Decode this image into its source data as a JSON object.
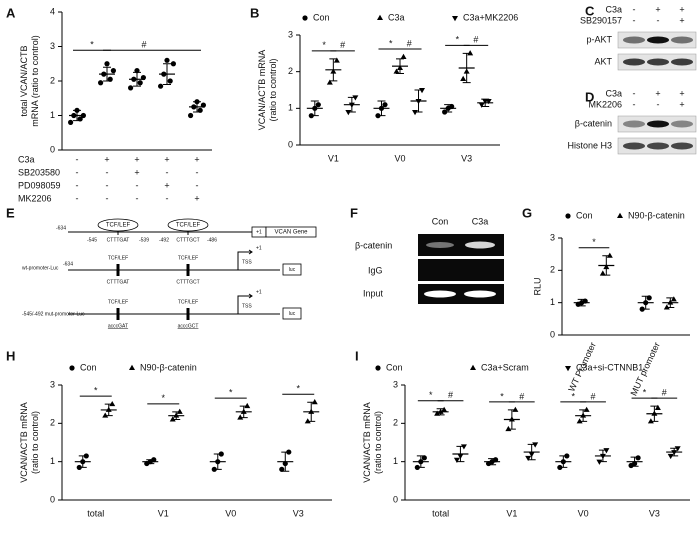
{
  "chart_data": [
    {
      "panel": "A",
      "type": "strip",
      "ylabel": [
        "total VCAN/ACTB",
        "mRNA (ratio to control)"
      ],
      "categories": [
        null,
        null,
        null,
        null,
        null
      ],
      "ylim": [
        0,
        4
      ],
      "yticks": [
        0,
        1,
        2,
        3,
        4
      ],
      "series": [
        {
          "color": "#000000",
          "marker": "circle",
          "means": [
            1.0,
            2.2,
            2.05,
            2.2,
            1.25
          ],
          "sds": [
            0.15,
            0.2,
            0.2,
            0.3,
            0.15
          ],
          "points": [
            [
              0.8,
              0.9,
              1.0,
              1.0,
              1.15
            ],
            [
              1.95,
              2.05,
              2.2,
              2.3,
              2.5
            ],
            [
              1.8,
              1.95,
              2.05,
              2.1,
              2.3
            ],
            [
              1.85,
              2.0,
              2.2,
              2.5,
              2.6
            ],
            [
              1.0,
              1.15,
              1.25,
              1.3,
              1.4
            ]
          ]
        }
      ],
      "annotations": [
        "*",
        "#"
      ],
      "conditions": [
        {
          "name": "C3a",
          "signs": [
            "-",
            "+",
            "+",
            "+",
            "+"
          ]
        },
        {
          "name": "SB203580",
          "signs": [
            "-",
            "-",
            "+",
            "-",
            "-"
          ]
        },
        {
          "name": "PD098059",
          "signs": [
            "-",
            "-",
            "-",
            "+",
            "-"
          ]
        },
        {
          "name": "MK2206",
          "signs": [
            "-",
            "-",
            "-",
            "-",
            "+"
          ]
        }
      ]
    },
    {
      "panel": "B",
      "type": "strip",
      "ylabel": [
        "VCAN/ACTB mRNA",
        "(ratio to control)"
      ],
      "categories": [
        "V1",
        "V0",
        "V3"
      ],
      "ylim": [
        0,
        3
      ],
      "yticks": [
        0,
        1,
        2,
        3
      ],
      "series": [
        {
          "name": "Con",
          "color": "#000000",
          "marker": "circle",
          "means": [
            1.0,
            1.0,
            1.0
          ],
          "sds": [
            0.2,
            0.2,
            0.1
          ],
          "points": [
            [
              0.8,
              1.0,
              1.1
            ],
            [
              0.8,
              1.0,
              1.1
            ],
            [
              0.9,
              1.0,
              1.05
            ]
          ]
        },
        {
          "name": "C3a",
          "color": "#000000",
          "marker": "triangle-up",
          "means": [
            2.05,
            2.15,
            2.1
          ],
          "sds": [
            0.3,
            0.2,
            0.4
          ],
          "points": [
            [
              1.7,
              2.0,
              2.3
            ],
            [
              2.0,
              2.1,
              2.4
            ],
            [
              1.8,
              2.0,
              2.5
            ]
          ]
        },
        {
          "name": "C3a+MK2206",
          "color": "#000000",
          "marker": "triangle-down",
          "means": [
            1.1,
            1.2,
            1.15
          ],
          "sds": [
            0.2,
            0.3,
            0.1
          ],
          "points": [
            [
              0.9,
              1.1,
              1.3
            ],
            [
              0.9,
              1.2,
              1.5
            ],
            [
              1.1,
              1.2,
              1.2
            ]
          ]
        }
      ],
      "annotations": [
        [
          "*",
          "#"
        ],
        [
          "*",
          "#"
        ],
        [
          "*",
          "#"
        ]
      ]
    },
    {
      "panel": "G",
      "type": "strip",
      "ylabel": [
        "RLU"
      ],
      "categories": [
        "WT Promoter",
        "MUT promoter"
      ],
      "ylim": [
        0,
        3
      ],
      "yticks": [
        0,
        1,
        2,
        3
      ],
      "series": [
        {
          "name": "Con",
          "color": "#000000",
          "marker": "circle",
          "means": [
            1.0,
            1.0
          ],
          "sds": [
            0.1,
            0.2
          ],
          "points": [
            [
              0.95,
              1.0,
              1.05
            ],
            [
              0.8,
              1.0,
              1.15
            ]
          ]
        },
        {
          "name": "N90-β-catenin",
          "color": "#000000",
          "marker": "triangle-up",
          "means": [
            2.15,
            1.0
          ],
          "sds": [
            0.3,
            0.15
          ],
          "points": [
            [
              1.9,
              2.1,
              2.45
            ],
            [
              0.85,
              1.0,
              1.1
            ]
          ]
        }
      ],
      "annotations": [
        [
          "*"
        ],
        []
      ]
    },
    {
      "panel": "H",
      "type": "strip",
      "ylabel": [
        "VCAN/ACTB mRNA",
        "(ratio to control)"
      ],
      "categories": [
        "total",
        "V1",
        "V0",
        "V3"
      ],
      "ylim": [
        0,
        3
      ],
      "yticks": [
        0,
        1,
        2,
        3
      ],
      "series": [
        {
          "name": "Con",
          "color": "#000000",
          "marker": "circle",
          "means": [
            1.0,
            1.0,
            1.0,
            1.0
          ],
          "sds": [
            0.15,
            0.05,
            0.2,
            0.25
          ],
          "points": [
            [
              0.85,
              1.0,
              1.15
            ],
            [
              0.95,
              1.0,
              1.05
            ],
            [
              0.8,
              1.0,
              1.2
            ],
            [
              0.8,
              0.95,
              1.25
            ]
          ]
        },
        {
          "name": "N90-β-catenin",
          "color": "#000000",
          "marker": "triangle-up",
          "means": [
            2.35,
            2.2,
            2.3,
            2.3
          ],
          "sds": [
            0.15,
            0.1,
            0.15,
            0.25
          ],
          "points": [
            [
              2.2,
              2.35,
              2.5
            ],
            [
              2.1,
              2.2,
              2.3
            ],
            [
              2.15,
              2.3,
              2.45
            ],
            [
              2.05,
              2.3,
              2.55
            ]
          ]
        }
      ],
      "annotations": [
        [
          "*"
        ],
        [
          "*"
        ],
        [
          "*"
        ],
        [
          "*"
        ]
      ]
    },
    {
      "panel": "I",
      "type": "strip",
      "ylabel": [
        "VCAN/ACTB mRNA",
        "(ratio to control)"
      ],
      "categories": [
        "total",
        "V1",
        "V0",
        "V3"
      ],
      "ylim": [
        0,
        3
      ],
      "yticks": [
        0,
        1,
        2,
        3
      ],
      "series": [
        {
          "name": "Con",
          "color": "#000000",
          "marker": "circle",
          "means": [
            1.0,
            1.0,
            1.0,
            1.0
          ],
          "sds": [
            0.15,
            0.08,
            0.15,
            0.12
          ],
          "points": [
            [
              0.85,
              1.0,
              1.1
            ],
            [
              0.95,
              1.0,
              1.05
            ],
            [
              0.85,
              1.0,
              1.15
            ],
            [
              0.9,
              0.95,
              1.1
            ]
          ]
        },
        {
          "name": "C3a+Scram",
          "color": "#000000",
          "marker": "triangle-up",
          "means": [
            2.3,
            2.1,
            2.2,
            2.25
          ],
          "sds": [
            0.08,
            0.25,
            0.15,
            0.2
          ],
          "points": [
            [
              2.25,
              2.3,
              2.35
            ],
            [
              1.85,
              2.1,
              2.35
            ],
            [
              2.05,
              2.2,
              2.35
            ],
            [
              2.05,
              2.25,
              2.4
            ]
          ]
        },
        {
          "name": "C3a+si-CTNNB1",
          "color": "#000000",
          "marker": "triangle-down",
          "means": [
            1.2,
            1.25,
            1.15,
            1.25
          ],
          "sds": [
            0.2,
            0.2,
            0.15,
            0.1
          ],
          "points": [
            [
              1.05,
              1.15,
              1.4
            ],
            [
              1.1,
              1.2,
              1.45
            ],
            [
              1.0,
              1.15,
              1.3
            ],
            [
              1.15,
              1.25,
              1.35
            ]
          ]
        }
      ],
      "annotations": [
        [
          "*",
          "#"
        ],
        [
          "*",
          "#"
        ],
        [
          "*",
          "#"
        ],
        [
          "*",
          "#"
        ]
      ]
    }
  ],
  "blots": [
    {
      "panel": "C",
      "lanes": [
        {
          "name": "C3a",
          "signs": [
            "-",
            "+",
            "+"
          ]
        },
        {
          "name": "SB290157",
          "signs": [
            "-",
            "-",
            "+"
          ]
        }
      ],
      "rows": [
        "p-AKT",
        "AKT"
      ]
    },
    {
      "panel": "D",
      "lanes": [
        {
          "name": "C3a",
          "signs": [
            "-",
            "+",
            "+"
          ]
        },
        {
          "name": "MK2206",
          "signs": [
            "-",
            "-",
            "+"
          ]
        }
      ],
      "rows": [
        "β-catenin",
        "Histone H3"
      ]
    }
  ],
  "chip": {
    "panel": "F",
    "columns": [
      "Con",
      "C3a"
    ],
    "rows": [
      "β-catenin",
      "IgG",
      "Input"
    ]
  },
  "diagram": {
    "panel": "E",
    "site": "TCF/LEF",
    "gene": "VCAN Gene",
    "start": "-634",
    "coords": [
      "-545",
      "-539",
      "-492",
      "-486"
    ],
    "seqs": [
      "CTTTGAT",
      "CTTTGCT"
    ],
    "plus": "+1",
    "wt": "wt-promoter-Luc",
    "mut": "-545/-492 mut-promoter-Luc",
    "tss": "TSS",
    "luc": "luc",
    "mut_seqs": [
      "acccGAT",
      "acccGCT"
    ]
  }
}
